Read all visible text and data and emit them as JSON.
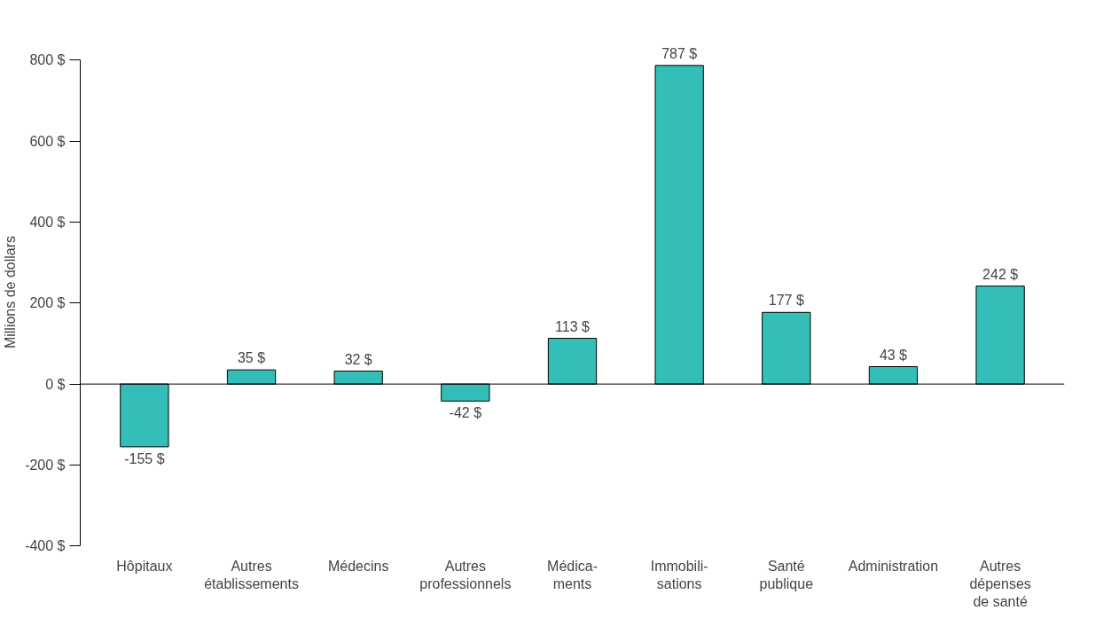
{
  "chart_data": {
    "type": "bar",
    "ylabel": "Millions de dollars",
    "categories": [
      "Hôpitaux",
      "Autres\nétablissements",
      "Médecins",
      "Autres\nprofessionnels",
      "Médica-\nments",
      "Immobili-\nsations",
      "Santé\npublique",
      "Administration",
      "Autres\ndépenses\nde santé"
    ],
    "values": [
      -155,
      35,
      32,
      -42,
      113,
      787,
      177,
      43,
      242
    ],
    "value_labels": [
      "-155 $",
      "35 $",
      "32 $",
      "-42 $",
      "113 $",
      "787 $",
      "177 $",
      "43 $",
      "242 $"
    ],
    "color": "#33bfb8",
    "ylim": [
      -400,
      800
    ],
    "yticks": [
      {
        "value": -400,
        "label": "-400 $"
      },
      {
        "value": -200,
        "label": "-200 $"
      },
      {
        "value": 0,
        "label": "0 $"
      },
      {
        "value": 200,
        "label": "200 $"
      },
      {
        "value": 400,
        "label": "400 $"
      },
      {
        "value": 600,
        "label": "600 $"
      },
      {
        "value": 800,
        "label": "800 $"
      }
    ],
    "line_style": "solid"
  }
}
